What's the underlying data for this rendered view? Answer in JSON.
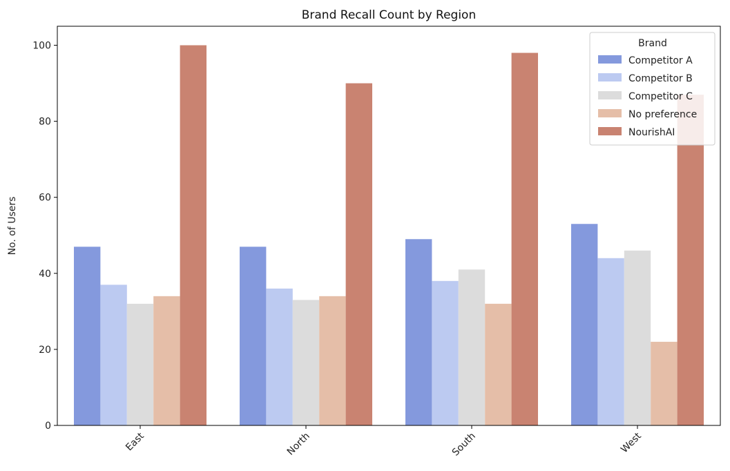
{
  "chart_data": {
    "type": "bar",
    "title": "Brand Recall Count by Region",
    "xlabel": "",
    "ylabel": "No. of Users",
    "categories": [
      "East",
      "North",
      "South",
      "West"
    ],
    "ylim": [
      0,
      105
    ],
    "yticks": [
      0,
      20,
      40,
      60,
      80,
      100
    ],
    "legend": {
      "title": "Brand",
      "placement": "top-right"
    },
    "series": [
      {
        "name": "Competitor A",
        "color": "#8499dd",
        "values": [
          47,
          47,
          49,
          53
        ]
      },
      {
        "name": "Competitor B",
        "color": "#bccaf1",
        "values": [
          37,
          36,
          38,
          44
        ]
      },
      {
        "name": "Competitor C",
        "color": "#dcdcdc",
        "values": [
          32,
          33,
          41,
          46
        ]
      },
      {
        "name": "No preference",
        "color": "#e5bea8",
        "values": [
          34,
          34,
          32,
          22
        ]
      },
      {
        "name": "NourishAI",
        "color": "#c98371",
        "values": [
          100,
          90,
          98,
          87
        ]
      }
    ],
    "grid": false
  }
}
